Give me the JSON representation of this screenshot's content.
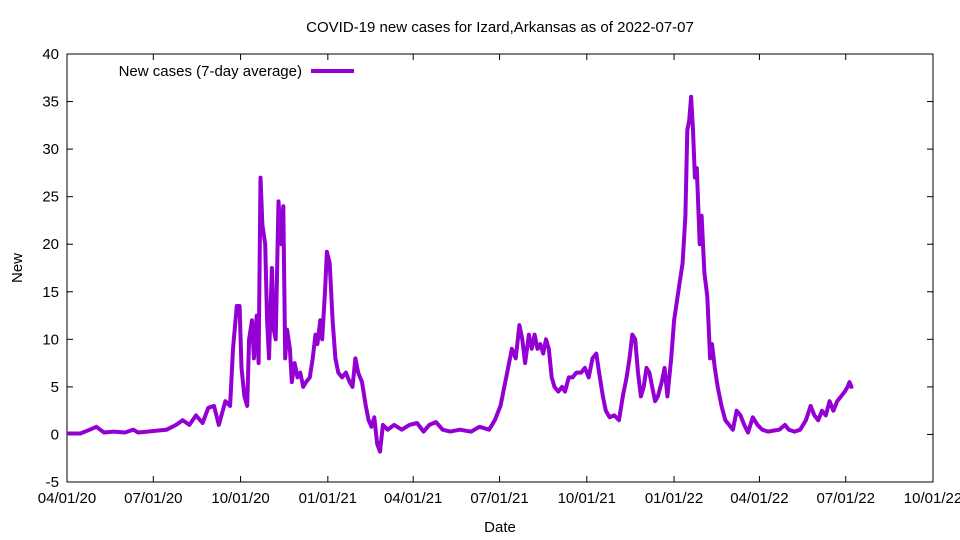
{
  "chart_data": {
    "type": "line",
    "title": "COVID-19 new cases for Izard,Arkansas as of 2022-07-07",
    "xlabel": "Date",
    "ylabel": "New",
    "xlim": [
      "2020-04-01",
      "2022-10-01"
    ],
    "ylim": [
      -5,
      40
    ],
    "x_ticks": [
      "04/01/20",
      "07/01/20",
      "10/01/20",
      "01/01/21",
      "04/01/21",
      "07/01/21",
      "10/01/21",
      "01/01/22",
      "04/01/22",
      "07/01/22",
      "10/01/22"
    ],
    "y_ticks": [
      -5,
      0,
      5,
      10,
      15,
      20,
      25,
      30,
      35,
      40
    ],
    "legend": {
      "position": "top-left"
    },
    "grid": false,
    "series": [
      {
        "name": "New cases (7-day average)",
        "color": "#9400d3",
        "points": [
          [
            "2020-04-03",
            0.1
          ],
          [
            "2020-04-15",
            0.1
          ],
          [
            "2020-04-25",
            0.5
          ],
          [
            "2020-05-02",
            0.8
          ],
          [
            "2020-05-10",
            0.2
          ],
          [
            "2020-05-20",
            0.3
          ],
          [
            "2020-06-01",
            0.2
          ],
          [
            "2020-06-10",
            0.5
          ],
          [
            "2020-06-15",
            0.2
          ],
          [
            "2020-06-25",
            0.3
          ],
          [
            "2020-07-05",
            0.4
          ],
          [
            "2020-07-15",
            0.5
          ],
          [
            "2020-07-25",
            1.0
          ],
          [
            "2020-08-01",
            1.5
          ],
          [
            "2020-08-08",
            1.0
          ],
          [
            "2020-08-15",
            2.0
          ],
          [
            "2020-08-22",
            1.2
          ],
          [
            "2020-08-28",
            2.8
          ],
          [
            "2020-09-03",
            3.0
          ],
          [
            "2020-09-08",
            1.0
          ],
          [
            "2020-09-15",
            3.5
          ],
          [
            "2020-09-20",
            3.0
          ],
          [
            "2020-09-23",
            9.0
          ],
          [
            "2020-09-27",
            13.5
          ],
          [
            "2020-09-30",
            13.5
          ],
          [
            "2020-10-02",
            7.0
          ],
          [
            "2020-10-05",
            4.0
          ],
          [
            "2020-10-08",
            3.0
          ],
          [
            "2020-10-10",
            10.0
          ],
          [
            "2020-10-13",
            12.0
          ],
          [
            "2020-10-15",
            8.0
          ],
          [
            "2020-10-18",
            12.5
          ],
          [
            "2020-10-20",
            7.5
          ],
          [
            "2020-10-22",
            27.0
          ],
          [
            "2020-10-24",
            22.0
          ],
          [
            "2020-10-27",
            20.0
          ],
          [
            "2020-10-29",
            12.0
          ],
          [
            "2020-10-31",
            8.0
          ],
          [
            "2020-11-03",
            17.5
          ],
          [
            "2020-11-05",
            11.0
          ],
          [
            "2020-11-07",
            10.0
          ],
          [
            "2020-11-10",
            24.5
          ],
          [
            "2020-11-13",
            20.0
          ],
          [
            "2020-11-15",
            24.0
          ],
          [
            "2020-11-17",
            8.0
          ],
          [
            "2020-11-19",
            11.0
          ],
          [
            "2020-11-22",
            9.0
          ],
          [
            "2020-11-24",
            5.5
          ],
          [
            "2020-11-27",
            7.5
          ],
          [
            "2020-11-30",
            6.0
          ],
          [
            "2020-12-03",
            6.5
          ],
          [
            "2020-12-06",
            5.0
          ],
          [
            "2020-12-09",
            5.5
          ],
          [
            "2020-12-13",
            6.0
          ],
          [
            "2020-12-16",
            8.0
          ],
          [
            "2020-12-19",
            10.5
          ],
          [
            "2020-12-21",
            9.5
          ],
          [
            "2020-12-24",
            12.0
          ],
          [
            "2020-12-26",
            10.0
          ],
          [
            "2020-12-29",
            15.0
          ],
          [
            "2020-12-31",
            19.2
          ],
          [
            "2021-01-03",
            18.0
          ],
          [
            "2021-01-06",
            12.0
          ],
          [
            "2021-01-09",
            8.0
          ],
          [
            "2021-01-12",
            6.5
          ],
          [
            "2021-01-16",
            6.0
          ],
          [
            "2021-01-20",
            6.5
          ],
          [
            "2021-01-24",
            5.5
          ],
          [
            "2021-01-27",
            5.0
          ],
          [
            "2021-01-30",
            8.0
          ],
          [
            "2021-02-02",
            6.5
          ],
          [
            "2021-02-06",
            5.5
          ],
          [
            "2021-02-10",
            3.0
          ],
          [
            "2021-02-13",
            1.5
          ],
          [
            "2021-02-16",
            0.8
          ],
          [
            "2021-02-19",
            1.8
          ],
          [
            "2021-02-22",
            -1.0
          ],
          [
            "2021-02-25",
            -1.8
          ],
          [
            "2021-02-28",
            1.0
          ],
          [
            "2021-03-05",
            0.5
          ],
          [
            "2021-03-12",
            1.0
          ],
          [
            "2021-03-20",
            0.5
          ],
          [
            "2021-03-28",
            1.0
          ],
          [
            "2021-04-05",
            1.2
          ],
          [
            "2021-04-12",
            0.3
          ],
          [
            "2021-04-18",
            1.0
          ],
          [
            "2021-04-25",
            1.3
          ],
          [
            "2021-05-02",
            0.5
          ],
          [
            "2021-05-10",
            0.3
          ],
          [
            "2021-05-20",
            0.5
          ],
          [
            "2021-06-01",
            0.3
          ],
          [
            "2021-06-10",
            0.8
          ],
          [
            "2021-06-20",
            0.5
          ],
          [
            "2021-06-26",
            1.5
          ],
          [
            "2021-07-02",
            3.0
          ],
          [
            "2021-07-06",
            5.0
          ],
          [
            "2021-07-10",
            7.0
          ],
          [
            "2021-07-14",
            9.0
          ],
          [
            "2021-07-18",
            8.0
          ],
          [
            "2021-07-22",
            11.5
          ],
          [
            "2021-07-25",
            10.0
          ],
          [
            "2021-07-28",
            7.5
          ],
          [
            "2021-08-01",
            10.5
          ],
          [
            "2021-08-04",
            9.0
          ],
          [
            "2021-08-07",
            10.5
          ],
          [
            "2021-08-10",
            9.0
          ],
          [
            "2021-08-13",
            9.5
          ],
          [
            "2021-08-16",
            8.5
          ],
          [
            "2021-08-19",
            10.0
          ],
          [
            "2021-08-22",
            9.0
          ],
          [
            "2021-08-25",
            6.0
          ],
          [
            "2021-08-28",
            5.0
          ],
          [
            "2021-09-01",
            4.5
          ],
          [
            "2021-09-05",
            5.0
          ],
          [
            "2021-09-08",
            4.5
          ],
          [
            "2021-09-12",
            6.0
          ],
          [
            "2021-09-16",
            6.0
          ],
          [
            "2021-09-20",
            6.5
          ],
          [
            "2021-09-25",
            6.5
          ],
          [
            "2021-09-29",
            7.0
          ],
          [
            "2021-10-03",
            6.0
          ],
          [
            "2021-10-07",
            8.0
          ],
          [
            "2021-10-11",
            8.5
          ],
          [
            "2021-10-14",
            6.5
          ],
          [
            "2021-10-18",
            4.0
          ],
          [
            "2021-10-21",
            2.5
          ],
          [
            "2021-10-25",
            1.8
          ],
          [
            "2021-10-30",
            2.0
          ],
          [
            "2021-11-04",
            1.5
          ],
          [
            "2021-11-08",
            4.0
          ],
          [
            "2021-11-12",
            6.0
          ],
          [
            "2021-11-15",
            8.0
          ],
          [
            "2021-11-18",
            10.5
          ],
          [
            "2021-11-21",
            10.0
          ],
          [
            "2021-11-24",
            6.5
          ],
          [
            "2021-11-27",
            4.0
          ],
          [
            "2021-11-30",
            5.0
          ],
          [
            "2021-12-03",
            7.0
          ],
          [
            "2021-12-06",
            6.5
          ],
          [
            "2021-12-09",
            5.0
          ],
          [
            "2021-12-12",
            3.5
          ],
          [
            "2021-12-15",
            4.0
          ],
          [
            "2021-12-19",
            5.5
          ],
          [
            "2021-12-22",
            7.0
          ],
          [
            "2021-12-25",
            4.0
          ],
          [
            "2021-12-29",
            8.0
          ],
          [
            "2022-01-01",
            12.0
          ],
          [
            "2022-01-04",
            14.0
          ],
          [
            "2022-01-07",
            16.0
          ],
          [
            "2022-01-10",
            18.0
          ],
          [
            "2022-01-13",
            23.0
          ],
          [
            "2022-01-15",
            32.0
          ],
          [
            "2022-01-17",
            33.0
          ],
          [
            "2022-01-19",
            35.5
          ],
          [
            "2022-01-21",
            32.0
          ],
          [
            "2022-01-23",
            27.0
          ],
          [
            "2022-01-25",
            28.0
          ],
          [
            "2022-01-28",
            20.0
          ],
          [
            "2022-01-30",
            23.0
          ],
          [
            "2022-02-02",
            17.0
          ],
          [
            "2022-02-05",
            14.5
          ],
          [
            "2022-02-08",
            8.0
          ],
          [
            "2022-02-10",
            9.5
          ],
          [
            "2022-02-13",
            7.0
          ],
          [
            "2022-02-16",
            5.0
          ],
          [
            "2022-02-20",
            3.0
          ],
          [
            "2022-02-24",
            1.5
          ],
          [
            "2022-02-28",
            1.0
          ],
          [
            "2022-03-04",
            0.5
          ],
          [
            "2022-03-08",
            2.5
          ],
          [
            "2022-03-12",
            2.0
          ],
          [
            "2022-03-16",
            1.0
          ],
          [
            "2022-03-20",
            0.2
          ],
          [
            "2022-03-25",
            1.8
          ],
          [
            "2022-03-30",
            1.0
          ],
          [
            "2022-04-04",
            0.5
          ],
          [
            "2022-04-10",
            0.3
          ],
          [
            "2022-04-16",
            0.4
          ],
          [
            "2022-04-22",
            0.5
          ],
          [
            "2022-04-28",
            1.0
          ],
          [
            "2022-05-02",
            0.5
          ],
          [
            "2022-05-08",
            0.3
          ],
          [
            "2022-05-14",
            0.5
          ],
          [
            "2022-05-20",
            1.5
          ],
          [
            "2022-05-25",
            3.0
          ],
          [
            "2022-05-29",
            2.0
          ],
          [
            "2022-06-02",
            1.5
          ],
          [
            "2022-06-06",
            2.5
          ],
          [
            "2022-06-10",
            2.0
          ],
          [
            "2022-06-14",
            3.5
          ],
          [
            "2022-06-18",
            2.5
          ],
          [
            "2022-06-22",
            3.5
          ],
          [
            "2022-06-26",
            4.0
          ],
          [
            "2022-06-30",
            4.5
          ],
          [
            "2022-07-03",
            5.0
          ],
          [
            "2022-07-05",
            5.5
          ],
          [
            "2022-07-07",
            5.0
          ]
        ]
      }
    ]
  }
}
